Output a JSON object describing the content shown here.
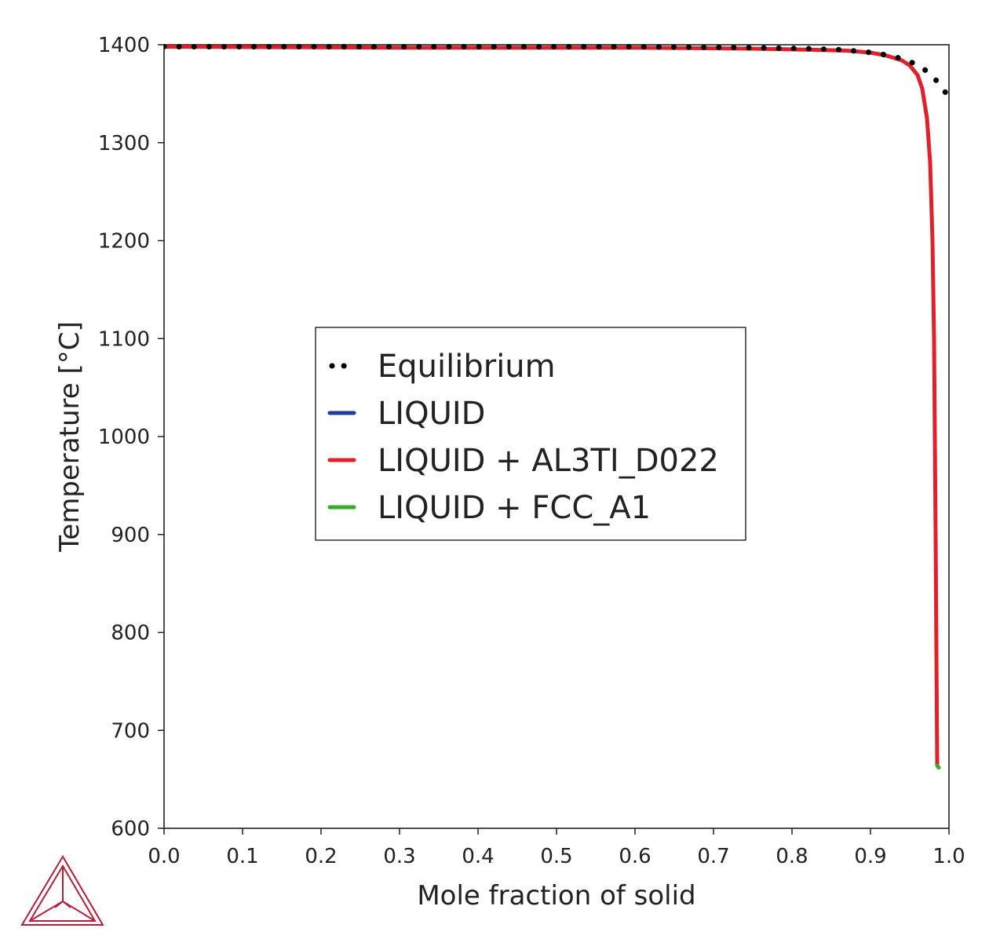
{
  "chart_data": {
    "type": "line",
    "title": "",
    "xlabel": "Mole fraction of solid",
    "ylabel": "Temperature [°C]",
    "xlim": [
      0.0,
      1.0
    ],
    "ylim": [
      600,
      1400
    ],
    "xticks": [
      {
        "value": 0.0,
        "label": "0.0"
      },
      {
        "value": 0.1,
        "label": "0.1"
      },
      {
        "value": 0.2,
        "label": "0.2"
      },
      {
        "value": 0.3,
        "label": "0.3"
      },
      {
        "value": 0.4,
        "label": "0.4"
      },
      {
        "value": 0.5,
        "label": "0.5"
      },
      {
        "value": 0.6,
        "label": "0.6"
      },
      {
        "value": 0.7,
        "label": "0.7"
      },
      {
        "value": 0.8,
        "label": "0.8"
      },
      {
        "value": 0.9,
        "label": "0.9"
      },
      {
        "value": 1.0,
        "label": "1.0"
      }
    ],
    "yticks": [
      {
        "value": 600,
        "label": "600"
      },
      {
        "value": 700,
        "label": "700"
      },
      {
        "value": 800,
        "label": "800"
      },
      {
        "value": 900,
        "label": "900"
      },
      {
        "value": 1000,
        "label": "1000"
      },
      {
        "value": 1100,
        "label": "1100"
      },
      {
        "value": 1200,
        "label": "1200"
      },
      {
        "value": 1300,
        "label": "1300"
      },
      {
        "value": 1400,
        "label": "1400"
      }
    ],
    "grid": false,
    "legend_position": "center-left",
    "series": [
      {
        "name": "Equilibrium",
        "style": "dotted",
        "color": "#000000",
        "x": [
          0.0,
          0.3,
          0.6,
          0.75,
          0.82,
          0.86,
          0.89,
          0.91,
          0.93,
          0.95,
          0.96,
          0.97,
          0.98,
          0.99,
          0.995,
          1.0
        ],
        "y": [
          1398,
          1398,
          1398,
          1397,
          1396,
          1395,
          1393,
          1391,
          1388,
          1383,
          1379,
          1374,
          1367,
          1358,
          1352,
          1345
        ]
      },
      {
        "name": "LIQUID",
        "style": "solid",
        "color": "#1f3b99",
        "x": [
          0.0,
          0.002
        ],
        "y": [
          1398,
          1398
        ]
      },
      {
        "name": "LIQUID + AL3TI_D022",
        "style": "solid",
        "color": "#e0202a",
        "x": [
          0.002,
          0.3,
          0.6,
          0.75,
          0.82,
          0.87,
          0.9,
          0.92,
          0.94,
          0.95,
          0.96,
          0.966,
          0.972,
          0.976,
          0.979,
          0.981,
          0.982,
          0.983,
          0.984,
          0.985
        ],
        "y": [
          1398,
          1397,
          1397,
          1396,
          1395,
          1394,
          1392,
          1389,
          1384,
          1379,
          1369,
          1355,
          1325,
          1280,
          1200,
          1100,
          1000,
          900,
          780,
          665
        ]
      },
      {
        "name": "LIQUID + FCC_A1",
        "style": "solid",
        "color": "#3aaa2a",
        "x": [
          0.985,
          0.987
        ],
        "y": [
          664,
          662
        ]
      }
    ]
  },
  "logo": {
    "name": "thermo-calc-logo",
    "color": "#b3203a"
  }
}
